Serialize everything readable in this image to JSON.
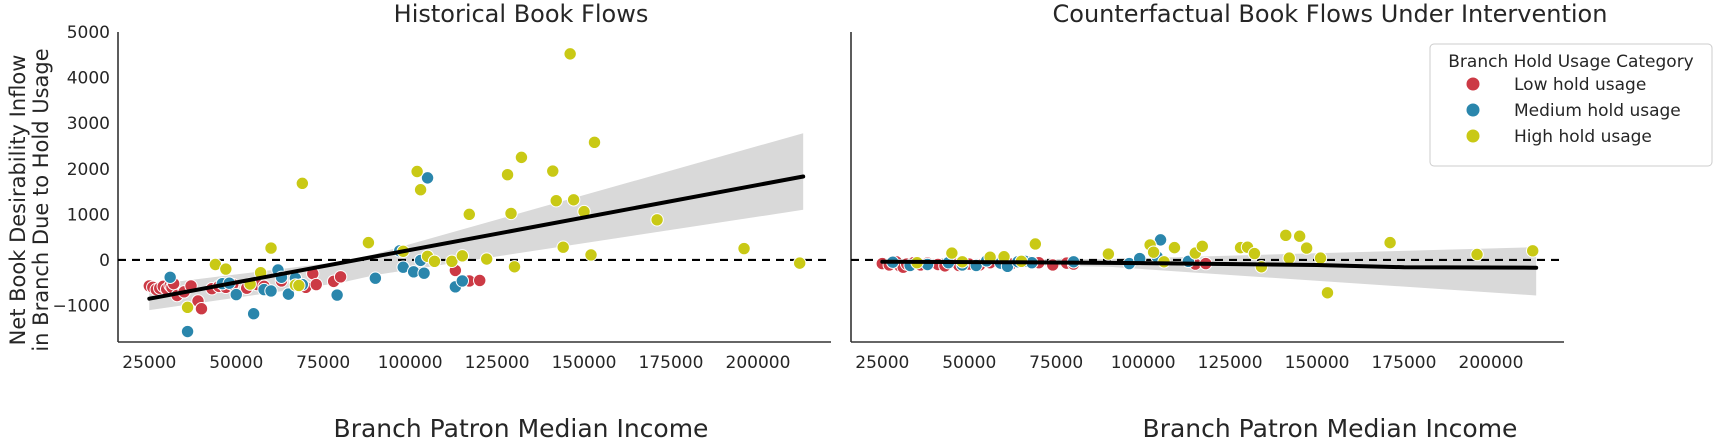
{
  "colors": {
    "low": "#cc3a45",
    "medium": "#2a86ac",
    "high": "#c9c915",
    "trend": "#000000",
    "ci": "#d9d9d9",
    "axis": "#333333"
  },
  "chart_data": [
    {
      "type": "scatter",
      "title": "Historical Book Flows",
      "xlabel": "Branch Patron Median Income",
      "ylabel_lines": [
        "Net Book Desirability Inflow",
        "in Branch Due to Hold Usage"
      ],
      "xlim": [
        16000,
        221000
      ],
      "ylim": [
        -1800,
        5000
      ],
      "xticks": [
        25000,
        50000,
        75000,
        100000,
        125000,
        150000,
        175000,
        200000
      ],
      "yticks": [
        -1000,
        0,
        1000,
        2000,
        3000,
        4000,
        5000
      ],
      "xtick_labels": [
        "25000",
        "50000",
        "75000",
        "100000",
        "125000",
        "150000",
        "175000",
        "200000"
      ],
      "ytick_labels": [
        "−1000",
        "0",
        "1000",
        "2000",
        "3000",
        "4000",
        "5000"
      ],
      "reference_line_y": 0,
      "trend": {
        "x": [
          25000,
          213000
        ],
        "y": [
          -850,
          1830
        ]
      },
      "ci_band": {
        "x": [
          25000,
          80000,
          90000,
          213000
        ],
        "upper": [
          -550,
          -40,
          130,
          2780
        ],
        "lower": [
          -1100,
          -500,
          -330,
          1100
        ]
      },
      "series": [
        {
          "name": "Low hold usage",
          "key": "low",
          "points": [
            [
              25000,
              -570
            ],
            [
              26000,
              -600
            ],
            [
              27000,
              -650
            ],
            [
              28000,
              -620
            ],
            [
              29000,
              -580
            ],
            [
              30000,
              -640
            ],
            [
              31000,
              -560
            ],
            [
              31500,
              -600
            ],
            [
              32000,
              -520
            ],
            [
              33000,
              -780
            ],
            [
              35000,
              -700
            ],
            [
              37000,
              -570
            ],
            [
              39000,
              -900
            ],
            [
              40000,
              -1070
            ],
            [
              43000,
              -630
            ],
            [
              45000,
              -580
            ],
            [
              47000,
              -600
            ],
            [
              49000,
              -540
            ],
            [
              53000,
              -620
            ],
            [
              56000,
              -540
            ],
            [
              58000,
              -580
            ],
            [
              63000,
              -460
            ],
            [
              67000,
              -470
            ],
            [
              70000,
              -600
            ],
            [
              72000,
              -300
            ],
            [
              73000,
              -540
            ],
            [
              78000,
              -470
            ],
            [
              80000,
              -370
            ],
            [
              113000,
              -230
            ],
            [
              115000,
              -450
            ],
            [
              117000,
              -460
            ],
            [
              120000,
              -450
            ]
          ]
        },
        {
          "name": "Medium hold usage",
          "key": "medium",
          "points": [
            [
              31000,
              -380
            ],
            [
              36000,
              -1570
            ],
            [
              46000,
              -520
            ],
            [
              48000,
              -510
            ],
            [
              50000,
              -760
            ],
            [
              55000,
              -1180
            ],
            [
              58000,
              -650
            ],
            [
              60000,
              -680
            ],
            [
              62000,
              -220
            ],
            [
              63000,
              -380
            ],
            [
              65000,
              -750
            ],
            [
              67000,
              -400
            ],
            [
              69000,
              -540
            ],
            [
              79000,
              -770
            ],
            [
              90000,
              -400
            ],
            [
              97000,
              200
            ],
            [
              98000,
              -160
            ],
            [
              101000,
              -260
            ],
            [
              103000,
              -10
            ],
            [
              104000,
              -290
            ],
            [
              105000,
              1800
            ],
            [
              113000,
              -590
            ],
            [
              115000,
              -460
            ]
          ]
        },
        {
          "name": "High hold usage",
          "key": "high",
          "points": [
            [
              36000,
              -1040
            ],
            [
              44000,
              -100
            ],
            [
              47000,
              -200
            ],
            [
              54000,
              -530
            ],
            [
              57000,
              -280
            ],
            [
              60000,
              260
            ],
            [
              67000,
              -550
            ],
            [
              68000,
              -560
            ],
            [
              69000,
              1680
            ],
            [
              88000,
              380
            ],
            [
              98000,
              190
            ],
            [
              102000,
              1940
            ],
            [
              103000,
              1540
            ],
            [
              105000,
              80
            ],
            [
              107000,
              -30
            ],
            [
              112000,
              -30
            ],
            [
              115000,
              90
            ],
            [
              117000,
              1000
            ],
            [
              122000,
              20
            ],
            [
              128000,
              1870
            ],
            [
              129000,
              1020
            ],
            [
              130000,
              -150
            ],
            [
              132000,
              2250
            ],
            [
              141000,
              1950
            ],
            [
              142000,
              1300
            ],
            [
              144000,
              280
            ],
            [
              146000,
              4520
            ],
            [
              147000,
              1320
            ],
            [
              150000,
              1060
            ],
            [
              152000,
              110
            ],
            [
              153000,
              2580
            ],
            [
              171000,
              880
            ],
            [
              196000,
              250
            ],
            [
              212000,
              -70
            ]
          ]
        }
      ]
    },
    {
      "type": "scatter",
      "title": "Counterfactual Book Flows Under Intervention",
      "xlabel": "Branch Patron Median Income",
      "xlim": [
        16000,
        221000
      ],
      "ylim": [
        -1800,
        5000
      ],
      "xticks": [
        25000,
        50000,
        75000,
        100000,
        125000,
        150000,
        175000,
        200000
      ],
      "xtick_labels": [
        "25000",
        "50000",
        "75000",
        "100000",
        "125000",
        "150000",
        "175000",
        "200000"
      ],
      "reference_line_y": 0,
      "trend": {
        "x": [
          25000,
          60000,
          100000,
          150000,
          175000,
          213000
        ],
        "y": [
          -40,
          -50,
          -70,
          -110,
          -160,
          -170
        ]
      },
      "ci_band": {
        "x": [
          25000,
          60000,
          90000,
          213000
        ],
        "upper": [
          30,
          20,
          20,
          280
        ],
        "lower": [
          -120,
          -110,
          -150,
          -780
        ]
      },
      "series": [
        {
          "name": "Low hold usage",
          "key": "low",
          "points": [
            [
              25000,
              -80
            ],
            [
              27000,
              -110
            ],
            [
              29000,
              -40
            ],
            [
              30000,
              -130
            ],
            [
              31000,
              -160
            ],
            [
              32000,
              -90
            ],
            [
              34000,
              -60
            ],
            [
              36000,
              -110
            ],
            [
              38000,
              -70
            ],
            [
              41000,
              -100
            ],
            [
              43000,
              -130
            ],
            [
              45000,
              -50
            ],
            [
              47000,
              -120
            ],
            [
              50000,
              -90
            ],
            [
              53000,
              -110
            ],
            [
              56000,
              -60
            ],
            [
              59000,
              -40
            ],
            [
              62000,
              -90
            ],
            [
              67000,
              -40
            ],
            [
              70000,
              -60
            ],
            [
              74000,
              -110
            ],
            [
              78000,
              -70
            ],
            [
              80000,
              -90
            ],
            [
              115000,
              -90
            ],
            [
              118000,
              -80
            ]
          ]
        },
        {
          "name": "Medium hold usage",
          "key": "medium",
          "points": [
            [
              28000,
              -50
            ],
            [
              33000,
              -120
            ],
            [
              38000,
              -100
            ],
            [
              44000,
              -60
            ],
            [
              48000,
              -110
            ],
            [
              52000,
              -120
            ],
            [
              55000,
              -20
            ],
            [
              59000,
              -70
            ],
            [
              61000,
              -140
            ],
            [
              64000,
              -40
            ],
            [
              66000,
              -30
            ],
            [
              68000,
              -60
            ],
            [
              80000,
              -40
            ],
            [
              96000,
              -80
            ],
            [
              99000,
              30
            ],
            [
              104000,
              70
            ],
            [
              105000,
              440
            ],
            [
              113000,
              -30
            ]
          ]
        },
        {
          "name": "High hold usage",
          "key": "high",
          "points": [
            [
              35000,
              -60
            ],
            [
              45000,
              150
            ],
            [
              48000,
              -40
            ],
            [
              56000,
              60
            ],
            [
              60000,
              70
            ],
            [
              65000,
              -30
            ],
            [
              69000,
              350
            ],
            [
              90000,
              130
            ],
            [
              102000,
              330
            ],
            [
              103000,
              170
            ],
            [
              106000,
              -40
            ],
            [
              109000,
              270
            ],
            [
              115000,
              150
            ],
            [
              117000,
              300
            ],
            [
              128000,
              270
            ],
            [
              130000,
              280
            ],
            [
              132000,
              140
            ],
            [
              134000,
              -150
            ],
            [
              141000,
              540
            ],
            [
              142000,
              40
            ],
            [
              145000,
              520
            ],
            [
              147000,
              260
            ],
            [
              151000,
              40
            ],
            [
              153000,
              -720
            ],
            [
              171000,
              380
            ],
            [
              196000,
              120
            ],
            [
              212000,
              200
            ]
          ]
        }
      ]
    }
  ],
  "legend": {
    "title": "Branch Hold Usage Category",
    "items": [
      {
        "label": "Low hold usage",
        "key": "low"
      },
      {
        "label": "Medium hold usage",
        "key": "medium"
      },
      {
        "label": "High hold usage",
        "key": "high"
      }
    ]
  }
}
